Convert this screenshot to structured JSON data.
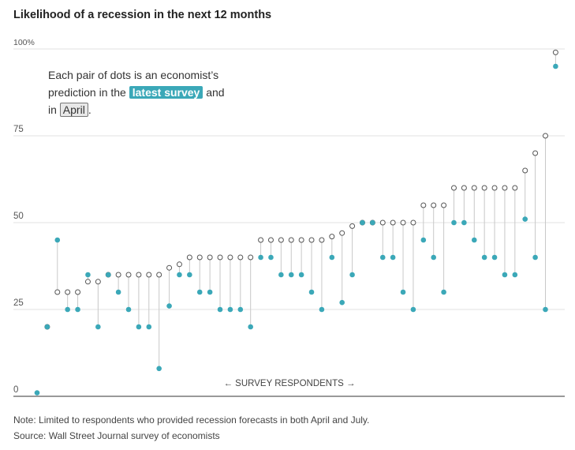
{
  "chart_data": {
    "type": "scatter",
    "title": "Likelihood of a recession in the next 12 months",
    "annotation": {
      "line1": "Each pair of dots is an economist’s",
      "line2_pre": "prediction in the",
      "latest_label": "latest survey",
      "and": "and",
      "in": "in",
      "april_label": "April",
      "period": "."
    },
    "xlabel": "← SURVEY RESPONDENTS →",
    "ylim": [
      0,
      100
    ],
    "yticks": [
      "0",
      "25",
      "50",
      "75",
      "100%"
    ],
    "colors": {
      "latest": "#3ba8b8",
      "april": "#555555",
      "line": "#c8c8c8",
      "grid": "#e2e2e2"
    },
    "series": [
      {
        "name": "latest survey",
        "values": [
          1,
          20,
          45,
          25,
          25,
          35,
          20,
          35,
          30,
          25,
          20,
          20,
          8,
          26,
          35,
          35,
          30,
          30,
          25,
          25,
          25,
          20,
          40,
          40,
          35,
          35,
          35,
          30,
          25,
          40,
          27,
          35,
          50,
          50,
          40,
          40,
          30,
          25,
          45,
          40,
          30,
          50,
          50,
          45,
          40,
          40,
          35,
          35,
          51,
          40,
          25,
          95
        ]
      },
      {
        "name": "April",
        "values": [
          null,
          20,
          30,
          30,
          30,
          33,
          33,
          35,
          35,
          35,
          35,
          35,
          35,
          37,
          38,
          40,
          40,
          40,
          40,
          40,
          40,
          40,
          45,
          45,
          45,
          45,
          45,
          45,
          45,
          46,
          47,
          49,
          50,
          50,
          50,
          50,
          50,
          50,
          55,
          55,
          55,
          60,
          60,
          60,
          60,
          60,
          60,
          60,
          65,
          70,
          75,
          99
        ]
      }
    ]
  },
  "notes": {
    "note": "Note: Limited to respondents who provided recession forecasts in both April and July.",
    "source": "Source: Wall Street Journal survey of economists"
  }
}
